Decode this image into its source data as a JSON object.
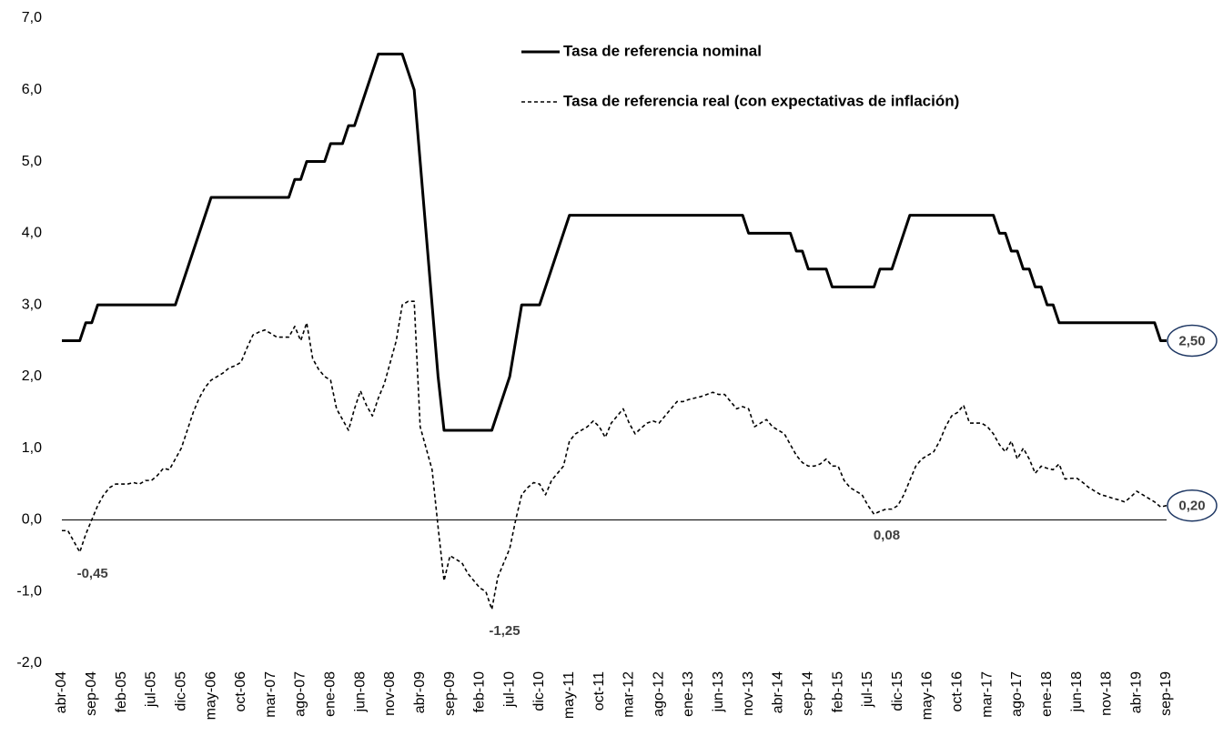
{
  "chart_data": {
    "type": "line",
    "categories": [
      "abr-04",
      null,
      null,
      null,
      null,
      "sep-04",
      null,
      null,
      null,
      null,
      "feb-05",
      null,
      null,
      null,
      null,
      "jul-05",
      null,
      null,
      null,
      null,
      "dic-05",
      null,
      null,
      null,
      null,
      "may-06",
      null,
      null,
      null,
      null,
      "oct-06",
      null,
      null,
      null,
      null,
      "mar-07",
      null,
      null,
      null,
      null,
      "ago-07",
      null,
      null,
      null,
      null,
      "ene-08",
      null,
      null,
      null,
      null,
      "jun-08",
      null,
      null,
      null,
      null,
      "nov-08",
      null,
      null,
      null,
      null,
      "abr-09",
      null,
      null,
      null,
      null,
      "sep-09",
      null,
      null,
      null,
      null,
      "feb-10",
      null,
      null,
      null,
      null,
      "jul-10",
      null,
      null,
      null,
      null,
      "dic-10",
      null,
      null,
      null,
      null,
      "may-11",
      null,
      null,
      null,
      null,
      "oct-11",
      null,
      null,
      null,
      null,
      "mar-12",
      null,
      null,
      null,
      null,
      "ago-12",
      null,
      null,
      null,
      null,
      "ene-13",
      null,
      null,
      null,
      null,
      "jun-13",
      null,
      null,
      null,
      null,
      "nov-13",
      null,
      null,
      null,
      null,
      "abr-14",
      null,
      null,
      null,
      null,
      "sep-14",
      null,
      null,
      null,
      null,
      "feb-15",
      null,
      null,
      null,
      null,
      "jul-15",
      null,
      null,
      null,
      null,
      "dic-15",
      null,
      null,
      null,
      null,
      "may-16",
      null,
      null,
      null,
      null,
      "oct-16",
      null,
      null,
      null,
      null,
      "mar-17",
      null,
      null,
      null,
      null,
      "ago-17",
      null,
      null,
      null,
      null,
      "ene-18",
      null,
      null,
      null,
      null,
      "jun-18",
      null,
      null,
      null,
      null,
      "nov-18",
      null,
      null,
      null,
      null,
      "abr-19",
      null,
      null,
      null,
      null,
      "sep-19"
    ],
    "series": [
      {
        "name": "Tasa de referencia nominal",
        "color": "#000000",
        "style": "solid",
        "values": [
          2.5,
          2.5,
          2.5,
          2.5,
          2.75,
          2.75,
          3,
          3,
          3,
          3,
          3,
          3,
          3,
          3,
          3,
          3,
          3,
          3,
          3,
          3,
          3.25,
          3.5,
          3.75,
          4,
          4.25,
          4.5,
          4.5,
          4.5,
          4.5,
          4.5,
          4.5,
          4.5,
          4.5,
          4.5,
          4.5,
          4.5,
          4.5,
          4.5,
          4.5,
          4.75,
          4.75,
          5,
          5,
          5,
          5,
          5.25,
          5.25,
          5.25,
          5.5,
          5.5,
          5.75,
          6,
          6.25,
          6.5,
          6.5,
          6.5,
          6.5,
          6.5,
          6.25,
          6,
          5,
          4,
          3,
          2,
          1.25,
          1.25,
          1.25,
          1.25,
          1.25,
          1.25,
          1.25,
          1.25,
          1.25,
          1.5,
          1.75,
          2,
          2.5,
          3,
          3,
          3,
          3,
          3.25,
          3.5,
          3.75,
          4,
          4.25,
          4.25,
          4.25,
          4.25,
          4.25,
          4.25,
          4.25,
          4.25,
          4.25,
          4.25,
          4.25,
          4.25,
          4.25,
          4.25,
          4.25,
          4.25,
          4.25,
          4.25,
          4.25,
          4.25,
          4.25,
          4.25,
          4.25,
          4.25,
          4.25,
          4.25,
          4.25,
          4.25,
          4.25,
          4.25,
          4,
          4,
          4,
          4,
          4,
          4,
          4,
          4,
          3.75,
          3.75,
          3.5,
          3.5,
          3.5,
          3.5,
          3.25,
          3.25,
          3.25,
          3.25,
          3.25,
          3.25,
          3.25,
          3.25,
          3.5,
          3.5,
          3.5,
          3.75,
          4,
          4.25,
          4.25,
          4.25,
          4.25,
          4.25,
          4.25,
          4.25,
          4.25,
          4.25,
          4.25,
          4.25,
          4.25,
          4.25,
          4.25,
          4.25,
          4,
          4,
          3.75,
          3.75,
          3.5,
          3.5,
          3.25,
          3.25,
          3,
          3,
          2.75,
          2.75,
          2.75,
          2.75,
          2.75,
          2.75,
          2.75,
          2.75,
          2.75,
          2.75,
          2.75,
          2.75,
          2.75,
          2.75,
          2.75,
          2.75,
          2.75,
          2.5,
          2.5
        ],
        "value_labels": [
          null,
          null,
          null,
          null,
          null,
          null,
          null,
          null,
          null,
          null,
          null,
          null,
          null,
          null,
          null,
          null,
          null,
          null,
          null,
          null,
          null,
          null,
          null,
          null,
          null,
          null,
          null,
          null,
          null,
          null,
          null,
          null,
          null,
          null,
          null,
          null,
          null,
          null,
          null,
          null,
          null,
          null,
          null,
          null,
          null,
          null,
          null,
          null,
          null,
          null,
          null,
          null,
          null,
          null,
          null,
          null,
          null,
          null,
          null,
          null,
          null,
          null,
          null,
          null,
          null,
          null,
          null,
          null,
          null,
          null,
          null,
          null,
          null,
          null,
          null,
          null,
          null,
          null,
          null,
          null,
          null,
          null,
          null,
          null,
          null,
          null,
          null,
          null,
          null,
          null,
          null,
          null,
          null,
          null,
          null,
          null,
          null,
          null,
          null,
          null,
          null,
          null,
          null,
          null,
          null,
          null,
          null,
          null,
          null,
          null,
          null,
          null,
          null,
          null,
          null,
          null,
          null,
          null,
          null,
          null,
          null,
          null,
          null,
          null,
          null,
          null,
          null,
          null,
          null,
          null,
          null,
          null,
          null,
          null,
          null,
          null,
          null,
          null,
          null,
          null,
          null,
          null,
          null,
          null,
          null,
          null,
          null,
          null,
          null,
          null,
          null,
          null,
          null,
          null,
          null,
          null,
          null,
          null,
          null,
          null,
          null,
          null,
          null,
          null,
          null,
          null,
          null,
          null,
          null,
          null,
          null,
          null,
          null,
          null,
          null,
          null,
          null,
          null,
          null,
          null,
          null,
          null,
          null,
          null,
          null,
          "2,50"
        ]
      },
      {
        "name": "Tasa de referencia real (con expectativas de inflación)",
        "color": "#000000",
        "style": "dashed",
        "values": [
          -0.15,
          -0.15,
          -0.3,
          -0.45,
          -0.2,
          0,
          0.2,
          0.35,
          0.45,
          0.5,
          0.5,
          0.5,
          0.52,
          0.5,
          0.55,
          0.55,
          0.62,
          0.72,
          0.7,
          0.85,
          1,
          1.25,
          1.5,
          1.7,
          1.85,
          1.95,
          2,
          2.05,
          2.12,
          2.15,
          2.2,
          2.4,
          2.58,
          2.62,
          2.65,
          2.6,
          2.55,
          2.55,
          2.55,
          2.7,
          2.5,
          2.75,
          2.25,
          2.1,
          2,
          1.95,
          1.55,
          1.4,
          1.25,
          1.55,
          1.8,
          1.6,
          1.45,
          1.7,
          1.9,
          2.2,
          2.5,
          3,
          3.05,
          3.05,
          1.3,
          1,
          0.7,
          -0.1,
          -0.85,
          -0.5,
          -0.55,
          -0.6,
          -0.75,
          -0.85,
          -0.95,
          -1,
          -1.25,
          -0.8,
          -0.6,
          -0.4,
          0,
          0.35,
          0.45,
          0.52,
          0.5,
          0.35,
          0.55,
          0.65,
          0.75,
          1.1,
          1.2,
          1.25,
          1.3,
          1.38,
          1.3,
          1.15,
          1.35,
          1.45,
          1.55,
          1.35,
          1.2,
          1.28,
          1.35,
          1.38,
          1.35,
          1.45,
          1.55,
          1.65,
          1.65,
          1.68,
          1.7,
          1.72,
          1.75,
          1.78,
          1.75,
          1.75,
          1.65,
          1.55,
          1.58,
          1.55,
          1.3,
          1.35,
          1.4,
          1.3,
          1.25,
          1.2,
          1.05,
          0.9,
          0.8,
          0.75,
          0.75,
          0.78,
          0.85,
          0.75,
          0.75,
          0.55,
          0.45,
          0.4,
          0.35,
          0.2,
          0.08,
          0.12,
          0.15,
          0.15,
          0.2,
          0.35,
          0.55,
          0.75,
          0.85,
          0.9,
          0.95,
          1.1,
          1.3,
          1.45,
          1.5,
          1.6,
          1.35,
          1.35,
          1.35,
          1.3,
          1.2,
          1.05,
          0.95,
          1.1,
          0.85,
          1,
          0.85,
          0.65,
          0.75,
          0.72,
          0.7,
          0.78,
          0.57,
          0.58,
          0.58,
          0.52,
          0.45,
          0.4,
          0.35,
          0.33,
          0.3,
          0.28,
          0.25,
          0.32,
          0.4,
          0.35,
          0.3,
          0.25,
          0.18,
          0.2
        ],
        "value_labels": [
          null,
          null,
          null,
          "-0,45",
          null,
          null,
          null,
          null,
          null,
          null,
          null,
          null,
          null,
          null,
          null,
          null,
          null,
          null,
          null,
          null,
          null,
          null,
          null,
          null,
          null,
          null,
          null,
          null,
          null,
          null,
          null,
          null,
          null,
          null,
          null,
          null,
          null,
          null,
          null,
          null,
          null,
          null,
          null,
          null,
          null,
          null,
          null,
          null,
          null,
          null,
          null,
          null,
          null,
          null,
          null,
          null,
          null,
          null,
          null,
          null,
          null,
          null,
          null,
          null,
          null,
          null,
          null,
          null,
          null,
          null,
          null,
          null,
          "-1,25",
          null,
          null,
          null,
          null,
          null,
          null,
          null,
          null,
          null,
          null,
          null,
          null,
          null,
          null,
          null,
          null,
          null,
          null,
          null,
          null,
          null,
          null,
          null,
          null,
          null,
          null,
          null,
          null,
          null,
          null,
          null,
          null,
          null,
          null,
          null,
          null,
          null,
          null,
          null,
          null,
          null,
          null,
          null,
          null,
          null,
          null,
          null,
          null,
          null,
          null,
          null,
          null,
          null,
          null,
          null,
          null,
          null,
          null,
          null,
          null,
          null,
          null,
          null,
          "0,08",
          null,
          null,
          null,
          null,
          null,
          null,
          null,
          null,
          null,
          null,
          null,
          null,
          null,
          null,
          null,
          null,
          null,
          null,
          null,
          null,
          null,
          null,
          null,
          null,
          null,
          null,
          null,
          null,
          null,
          null,
          null,
          null,
          null,
          null,
          null,
          null,
          null,
          null,
          null,
          null,
          null,
          null,
          null,
          null,
          null,
          null,
          null,
          null,
          "0,20"
        ]
      }
    ],
    "ylim": [
      -2,
      7
    ],
    "yticks": [
      {
        "value": -2,
        "label": "-2,0"
      },
      {
        "value": -1,
        "label": "-1,0"
      },
      {
        "value": 0,
        "label": "0,0"
      },
      {
        "value": 1,
        "label": "1,0"
      },
      {
        "value": 2,
        "label": "2,0"
      },
      {
        "value": 3,
        "label": "3,0"
      },
      {
        "value": 4,
        "label": "4,0"
      },
      {
        "value": 5,
        "label": "5,0"
      },
      {
        "value": 6,
        "label": "6,0"
      },
      {
        "value": 7,
        "label": "7,0"
      }
    ]
  }
}
